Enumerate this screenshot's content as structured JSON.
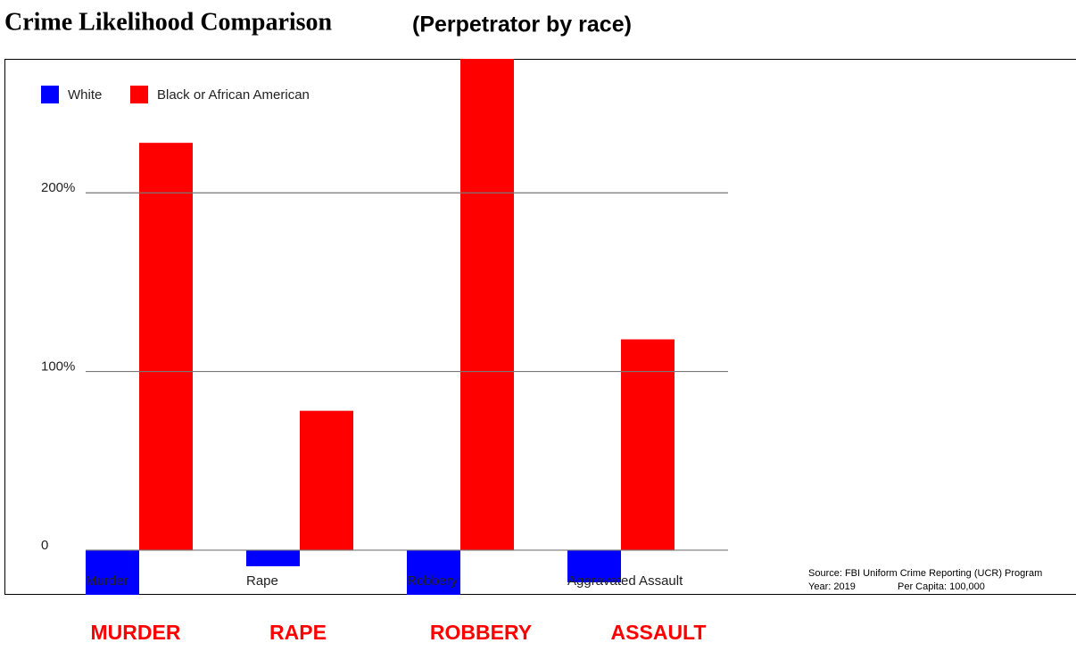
{
  "chart_data": {
    "type": "bar",
    "title": "Crime Likelihood Comparison",
    "subtitle": "(Perpetrator by race)",
    "categories": [
      "Murder",
      "Rape",
      "Robbery",
      "Aggravated Assault"
    ],
    "series": [
      {
        "name": "White",
        "color": "#0000ff",
        "values": [
          -25,
          -9,
          -25,
          -18
        ]
      },
      {
        "name": "Black or African American",
        "color": "#ff0000",
        "values": [
          228,
          78,
          275,
          118
        ]
      }
    ],
    "ylim": [
      -25,
      275
    ],
    "yticks": [
      0,
      {
        "value": 100,
        "label": "100%"
      },
      {
        "value": 200,
        "label": "200%"
      }
    ],
    "grid": true,
    "legend": "top-left",
    "source": "Source: FBI Uniform Crime Reporting (UCR) Program",
    "year": "Year: 2019",
    "per_capita": "Per Capita: 100,000"
  },
  "footer_labels": [
    "MURDER",
    "RAPE",
    "ROBBERY",
    "ASSAULT"
  ]
}
